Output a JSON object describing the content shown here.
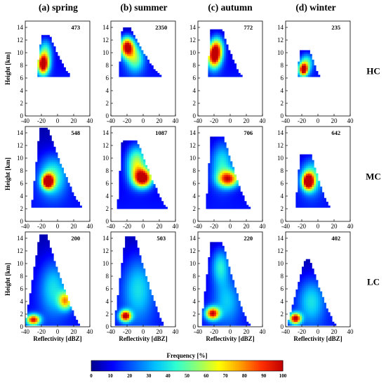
{
  "chart_data": {
    "type": "heatmap",
    "columns": [
      "(a) spring",
      "(b) summer",
      "(c) autumn",
      "(d) winter"
    ],
    "rows": [
      "HC",
      "MC",
      "LC"
    ],
    "xlabel": "Reflectivity [dBZ]",
    "ylabel": "Height [km]",
    "xlim": [
      -40,
      40
    ],
    "ylim": [
      0,
      15
    ],
    "xticks": [
      -40,
      -20,
      0,
      20,
      40
    ],
    "yticks": [
      0,
      2,
      4,
      6,
      8,
      10,
      12,
      14
    ],
    "colorbar": {
      "label": "Frequency [%]",
      "range": [
        0,
        100
      ],
      "ticks": [
        0,
        10,
        20,
        30,
        40,
        50,
        60,
        70,
        80,
        90,
        100
      ],
      "colors": [
        "#00008f",
        "#0000ff",
        "#0060ff",
        "#00c0ff",
        "#30ffd0",
        "#90ff70",
        "#ffff00",
        "#ffa000",
        "#ff3000",
        "#c00000"
      ]
    },
    "panels": [
      {
        "column": "(a) spring",
        "row": "HC",
        "count": "473",
        "xlim": [
          -40,
          40
        ],
        "ylim": [
          0,
          15
        ],
        "extent": {
          "bottom": 6.2,
          "top": 12.6,
          "left_bottom": -26,
          "left_top": -20,
          "right_bottom": 16,
          "right_top": -10
        },
        "peaks": [
          {
            "x": -18,
            "y": 8.0,
            "sx": 5,
            "sy": 1.1,
            "value": 95
          },
          {
            "x": -15,
            "y": 10.0,
            "sx": 6,
            "sy": 1.5,
            "value": 40
          }
        ]
      },
      {
        "column": "(b) summer",
        "row": "HC",
        "count": "2350",
        "xlim": [
          -40,
          40
        ],
        "ylim": [
          0,
          15
        ],
        "extent": {
          "bottom": 6.2,
          "top": 13.8,
          "left_bottom": -30,
          "left_top": -26,
          "right_bottom": 22,
          "right_top": -16
        },
        "peaks": [
          {
            "x": -20,
            "y": 10.8,
            "sx": 6,
            "sy": 1.1,
            "value": 95
          },
          {
            "x": -10,
            "y": 9.0,
            "sx": 8,
            "sy": 1.5,
            "value": 45
          }
        ]
      },
      {
        "column": "(c) autumn",
        "row": "HC",
        "count": "772",
        "xlim": [
          -40,
          40
        ],
        "ylim": [
          0,
          15
        ],
        "extent": {
          "bottom": 6.2,
          "top": 13.6,
          "left_bottom": -28,
          "left_top": -24,
          "right_bottom": 14,
          "right_top": -10
        },
        "peaks": [
          {
            "x": -20,
            "y": 9.3,
            "sx": 6,
            "sy": 1.3,
            "value": 90
          },
          {
            "x": -16,
            "y": 10.8,
            "sx": 6,
            "sy": 1.3,
            "value": 50
          }
        ]
      },
      {
        "column": "(d) winter",
        "row": "HC",
        "count": "235",
        "xlim": [
          -40,
          40
        ],
        "ylim": [
          0,
          15
        ],
        "extent": {
          "bottom": 6.2,
          "top": 10.3,
          "left_bottom": -26,
          "left_top": -22,
          "right_bottom": 2,
          "right_top": -10
        },
        "peaks": [
          {
            "x": -18,
            "y": 7.2,
            "sx": 4,
            "sy": 0.7,
            "value": 95
          },
          {
            "x": -14,
            "y": 8.4,
            "sx": 6,
            "sy": 1.0,
            "value": 40
          }
        ]
      },
      {
        "column": "(a) spring",
        "row": "MC",
        "count": "548",
        "xlim": [
          -40,
          40
        ],
        "ylim": [
          0,
          15
        ],
        "extent": {
          "bottom": 2.2,
          "top": 14.6,
          "left_bottom": -32,
          "left_top": -22,
          "right_bottom": 30,
          "right_top": -12
        },
        "peaks": [
          {
            "x": -12,
            "y": 6.2,
            "sx": 5,
            "sy": 0.8,
            "value": 98
          },
          {
            "x": -6,
            "y": 7.0,
            "sx": 12,
            "sy": 2.2,
            "value": 40
          }
        ]
      },
      {
        "column": "(b) summer",
        "row": "MC",
        "count": "1087",
        "xlim": [
          -40,
          40
        ],
        "ylim": [
          0,
          15
        ],
        "extent": {
          "bottom": 2.0,
          "top": 12.8,
          "left_bottom": -32,
          "left_top": -26,
          "right_bottom": 30,
          "right_top": -8
        },
        "peaks": [
          {
            "x": 0,
            "y": 6.7,
            "sx": 8,
            "sy": 1.0,
            "value": 92
          },
          {
            "x": -8,
            "y": 9.0,
            "sx": 9,
            "sy": 2.0,
            "value": 55
          }
        ]
      },
      {
        "column": "(c) autumn",
        "row": "MC",
        "count": "706",
        "xlim": [
          -40,
          40
        ],
        "ylim": [
          0,
          15
        ],
        "extent": {
          "bottom": 2.0,
          "top": 13.2,
          "left_bottom": -30,
          "left_top": -24,
          "right_bottom": 24,
          "right_top": -8
        },
        "peaks": [
          {
            "x": -2,
            "y": 6.6,
            "sx": 9,
            "sy": 0.9,
            "value": 75
          },
          {
            "x": -10,
            "y": 9.0,
            "sx": 10,
            "sy": 2.5,
            "value": 35
          }
        ]
      },
      {
        "column": "(d) winter",
        "row": "MC",
        "count": "642",
        "xlim": [
          -40,
          40
        ],
        "ylim": [
          0,
          15
        ],
        "extent": {
          "bottom": 2.2,
          "top": 10.4,
          "left_bottom": -28,
          "left_top": -22,
          "right_bottom": 14,
          "right_top": -8
        },
        "peaks": [
          {
            "x": -12,
            "y": 6.2,
            "sx": 5,
            "sy": 0.9,
            "value": 98
          },
          {
            "x": -8,
            "y": 7.0,
            "sx": 10,
            "sy": 2.0,
            "value": 40
          }
        ]
      },
      {
        "column": "(a) spring",
        "row": "LC",
        "count": "200",
        "xlim": [
          -40,
          40
        ],
        "ylim": [
          0,
          15
        ],
        "extent": {
          "bottom": 0.2,
          "top": 14.6,
          "left_bottom": -40,
          "left_top": -22,
          "right_bottom": 28,
          "right_top": -14
        },
        "peaks": [
          {
            "x": -30,
            "y": 1.0,
            "sx": 6,
            "sy": 0.6,
            "value": 85
          },
          {
            "x": 10,
            "y": 4.0,
            "sx": 6,
            "sy": 1.0,
            "value": 60
          },
          {
            "x": -5,
            "y": 6.0,
            "sx": 12,
            "sy": 3.0,
            "value": 30
          }
        ]
      },
      {
        "column": "(b) summer",
        "row": "LC",
        "count": "503",
        "xlim": [
          -40,
          40
        ],
        "ylim": [
          0,
          15
        ],
        "extent": {
          "bottom": 0.2,
          "top": 14.2,
          "left_bottom": -36,
          "left_top": -22,
          "right_bottom": 26,
          "right_top": -10
        },
        "peaks": [
          {
            "x": -22,
            "y": 1.6,
            "sx": 5,
            "sy": 0.6,
            "value": 95
          },
          {
            "x": -6,
            "y": 6.0,
            "sx": 14,
            "sy": 3.5,
            "value": 30
          }
        ]
      },
      {
        "column": "(c) autumn",
        "row": "LC",
        "count": "220",
        "xlim": [
          -40,
          40
        ],
        "ylim": [
          0,
          15
        ],
        "extent": {
          "bottom": 0.2,
          "top": 13.4,
          "left_bottom": -36,
          "left_top": -24,
          "right_bottom": 24,
          "right_top": -10
        },
        "peaks": [
          {
            "x": -22,
            "y": 2.0,
            "sx": 6,
            "sy": 0.7,
            "value": 85
          },
          {
            "x": -12,
            "y": 9.5,
            "sx": 8,
            "sy": 2.0,
            "value": 35
          },
          {
            "x": -4,
            "y": 4.0,
            "sx": 12,
            "sy": 2.5,
            "value": 25
          }
        ]
      },
      {
        "column": "(d) winter",
        "row": "LC",
        "count": "402",
        "xlim": [
          -40,
          40
        ],
        "ylim": [
          0,
          15
        ],
        "extent": {
          "bottom": 0.2,
          "top": 10.5,
          "left_bottom": -38,
          "left_top": -16,
          "right_bottom": 22,
          "right_top": -10
        },
        "peaks": [
          {
            "x": -28,
            "y": 1.2,
            "sx": 5,
            "sy": 0.6,
            "value": 95
          },
          {
            "x": -8,
            "y": 4.0,
            "sx": 12,
            "sy": 2.5,
            "value": 30
          }
        ]
      }
    ]
  }
}
